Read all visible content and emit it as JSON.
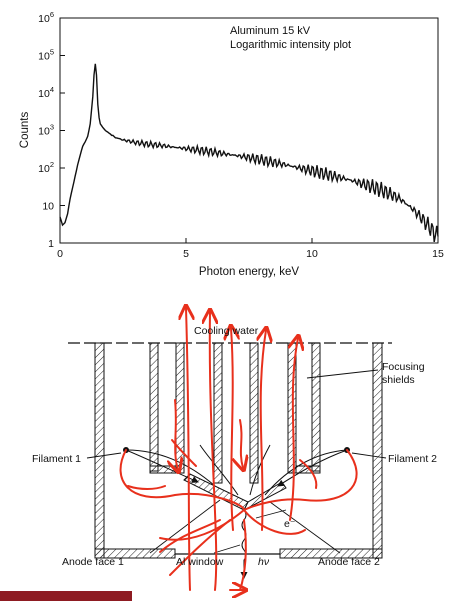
{
  "chart_data": {
    "type": "line",
    "title": "Aluminum 15 kV",
    "subtitle": "Logarithmic intensity plot",
    "xlabel": "Photon energy, keV",
    "ylabel": "Counts",
    "xlim": [
      0,
      15
    ],
    "ylim": [
      1,
      1000000
    ],
    "yscale": "log",
    "grid": false,
    "x_ticks": [
      "0",
      "5",
      "10",
      "15"
    ],
    "y_tick_bases": [
      "10",
      "10",
      "10",
      "10",
      "10",
      "10",
      "1"
    ],
    "y_tick_exponents": [
      "6",
      "5",
      "4",
      "3",
      "2",
      "",
      ""
    ],
    "series": [
      {
        "x": [
          0.0,
          0.1,
          0.2,
          0.3,
          0.4,
          0.5,
          0.6,
          0.7,
          0.8,
          0.9,
          1.0,
          1.1,
          1.2,
          1.3,
          1.35,
          1.4,
          1.45,
          1.5,
          1.55,
          1.6,
          1.7,
          1.8,
          1.9,
          2.0,
          2.2,
          2.5,
          3.0,
          3.5,
          4.0,
          4.5,
          5.0,
          5.5,
          6.0,
          6.5,
          7.0,
          7.5,
          8.0,
          8.5,
          9.0,
          9.5,
          10.0,
          10.5,
          11.0,
          11.5,
          12.0,
          12.5,
          13.0,
          13.5,
          14.0,
          14.3,
          14.6,
          14.8,
          15.0
        ],
        "y": [
          5,
          3,
          3.5,
          6,
          15,
          30,
          60,
          120,
          220,
          380,
          500,
          700,
          1500,
          8000,
          30000,
          60000,
          30000,
          5000,
          2200,
          1500,
          1200,
          1000,
          900,
          800,
          650,
          560,
          480,
          430,
          400,
          360,
          330,
          300,
          270,
          240,
          215,
          190,
          165,
          140,
          120,
          100,
          85,
          70,
          58,
          48,
          38,
          30,
          22,
          15,
          8,
          5,
          3,
          2,
          1.5
        ]
      }
    ]
  },
  "diagram": {
    "labels": {
      "cooling_water": "Cooling water",
      "focusing_shields_1": "Focusing",
      "focusing_shields_2": "shields",
      "filament_1": "Filament 1",
      "filament_2": "Filament 2",
      "electron": "e⁻",
      "anode_face_1": "Anode face 1",
      "al_window": "Al window",
      "hv": "hν",
      "anode_face_2": "Anode face 2"
    },
    "colors": {
      "annotation": "#e8301c",
      "hatch": "#222222",
      "bottom_bar": "#8e1b22"
    }
  }
}
